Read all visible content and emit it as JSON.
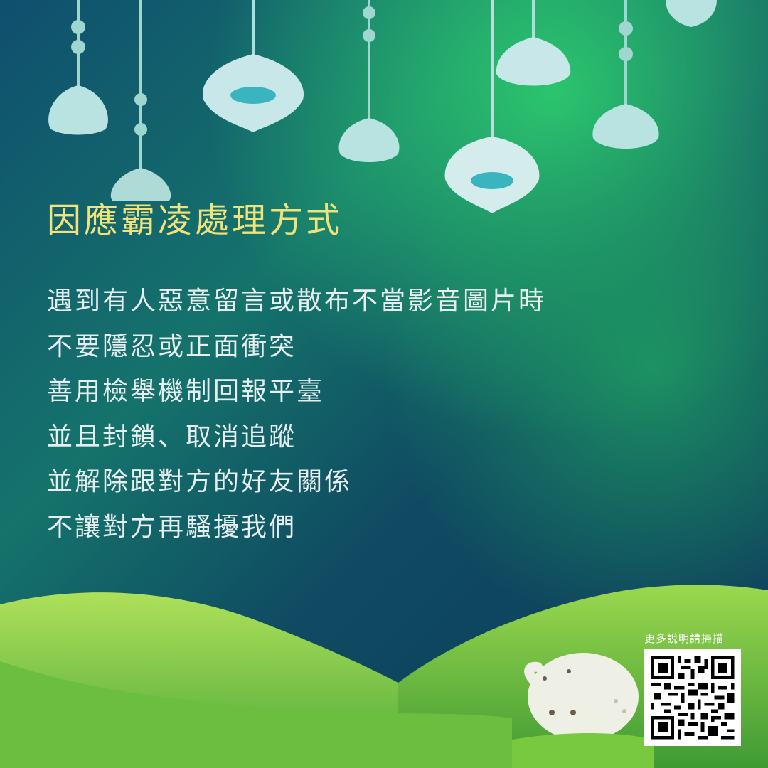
{
  "title": "因應霸凌處理方式",
  "body_lines": [
    "遇到有人惡意留言或散布不當影音圖片時",
    "不要隱忍或正面衝突",
    "善用檢舉機制回報平臺",
    "並且封鎖、取消追蹤",
    "並解除跟對方的好友關係",
    "不讓對方再騷擾我們"
  ],
  "qr": {
    "caption": "更多說明請掃描"
  },
  "colors": {
    "title": "#f2e27a",
    "body_text": "#e6eef0",
    "sky_dark": "#0f3f5c",
    "sky_green": "#1fa860",
    "grass": "#8ad24a",
    "lantern": "#b9e3e0",
    "lantern_light": "#2fb3c4"
  },
  "icons": [
    "hanging-lantern-icon",
    "bunny-icon",
    "qr-code-icon"
  ]
}
